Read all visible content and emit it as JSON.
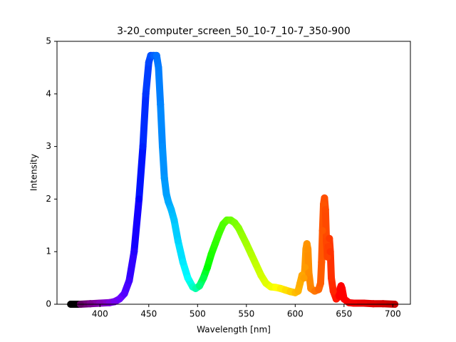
{
  "chart_data": {
    "type": "scatter",
    "title": "3-20_computer_screen_50_10-7_10-7_350-900",
    "x_label": "Wavelength [nm]",
    "y_label": "Intensity",
    "colormap": "wavelength",
    "xlim": [
      356,
      718
    ],
    "ylim": [
      0,
      5
    ],
    "xticks": [
      400,
      450,
      500,
      550,
      600,
      650,
      700
    ],
    "yticks": [
      0,
      1,
      2,
      3,
      4,
      5
    ],
    "x": [
      370,
      380,
      390,
      400,
      410,
      415,
      420,
      425,
      430,
      435,
      440,
      444,
      447,
      450,
      452,
      455,
      458,
      460,
      462,
      464,
      466,
      468,
      470,
      473,
      476,
      480,
      485,
      490,
      495,
      498,
      502,
      506,
      510,
      514,
      518,
      522,
      526,
      530,
      534,
      538,
      542,
      546,
      550,
      555,
      560,
      565,
      570,
      575,
      580,
      585,
      590,
      595,
      600,
      603,
      605,
      607,
      609,
      610,
      611,
      612,
      613,
      614,
      616,
      620,
      624,
      626,
      627,
      628,
      629,
      630,
      631,
      632,
      633,
      634,
      635,
      636,
      637,
      639,
      642,
      645,
      646,
      647,
      648,
      650,
      655,
      660,
      670,
      680,
      690,
      702
    ],
    "values": [
      0.0,
      0.0,
      0.01,
      0.02,
      0.03,
      0.05,
      0.1,
      0.2,
      0.45,
      1.0,
      2.0,
      3.0,
      4.0,
      4.6,
      4.73,
      4.73,
      4.73,
      4.5,
      3.8,
      3.0,
      2.4,
      2.1,
      1.95,
      1.8,
      1.6,
      1.2,
      0.8,
      0.5,
      0.33,
      0.3,
      0.35,
      0.5,
      0.7,
      0.95,
      1.15,
      1.35,
      1.52,
      1.6,
      1.6,
      1.55,
      1.45,
      1.3,
      1.15,
      0.95,
      0.75,
      0.55,
      0.4,
      0.33,
      0.32,
      0.3,
      0.27,
      0.24,
      0.22,
      0.25,
      0.4,
      0.55,
      0.5,
      0.7,
      1.05,
      1.15,
      1.05,
      0.6,
      0.3,
      0.25,
      0.28,
      0.4,
      0.8,
      1.4,
      1.9,
      2.02,
      1.8,
      1.2,
      0.9,
      1.1,
      1.25,
      1.0,
      0.5,
      0.25,
      0.1,
      0.15,
      0.3,
      0.35,
      0.3,
      0.1,
      0.03,
      0.02,
      0.02,
      0.01,
      0.01,
      0.0
    ]
  }
}
